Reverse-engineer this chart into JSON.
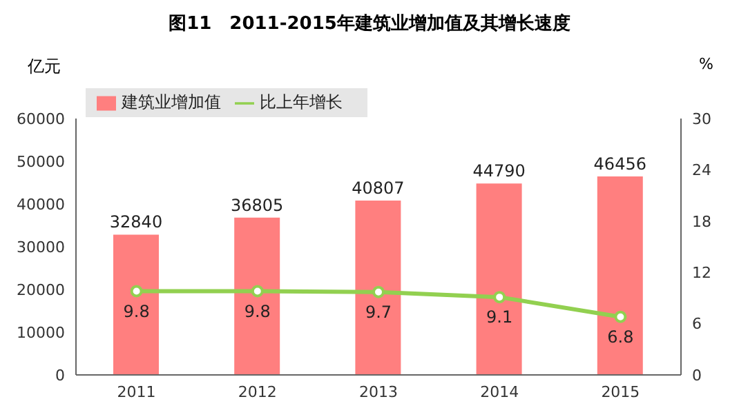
{
  "chart_data": {
    "type": "bar",
    "title": "图11　2011-2015年建筑业增加值及其增长速度",
    "ylabel": "亿元",
    "y2label": "%",
    "categories": [
      "2011",
      "2012",
      "2013",
      "2014",
      "2015"
    ],
    "series": [
      {
        "name": "建筑业增加值",
        "color": "#ff7f7f",
        "values": [
          32840,
          36805,
          40807,
          44790,
          46456
        ]
      },
      {
        "name": "比上年增长",
        "type": "line",
        "axis": "y2",
        "color": "#92d050",
        "values": [
          9.8,
          9.8,
          9.7,
          9.1,
          6.8
        ]
      }
    ],
    "ylim": [
      0,
      60000
    ],
    "yticks": [
      0,
      10000,
      20000,
      30000,
      40000,
      50000,
      60000
    ],
    "y2lim": [
      0,
      30
    ],
    "y2ticks": [
      0,
      6,
      12,
      18,
      24,
      30
    ],
    "data_labels": true,
    "legend": "top left",
    "marker": "circle",
    "grid": false
  }
}
